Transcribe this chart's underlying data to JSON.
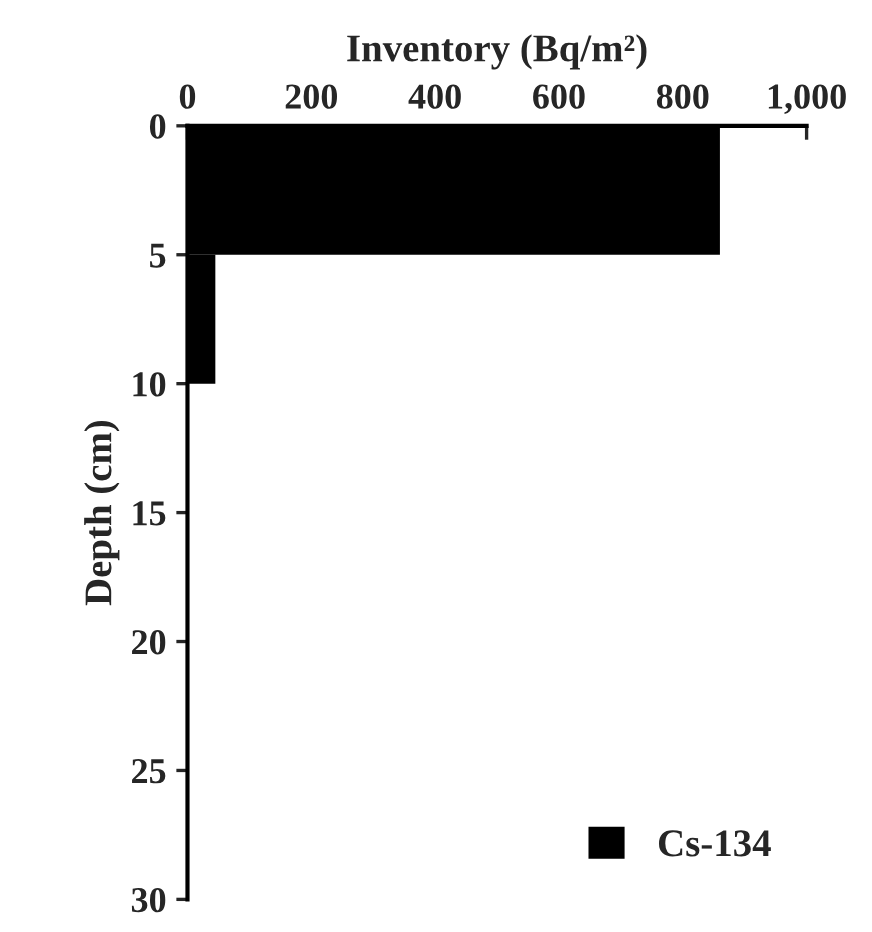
{
  "chart_data": {
    "type": "bar",
    "orientation": "horizontal",
    "xlabel": "Inventory (Bq/m²)",
    "ylabel": "Depth (cm)",
    "x": [
      2.5,
      7.5
    ],
    "series": [
      {
        "name": "Cs-134",
        "color": "#000000",
        "values": [
          860,
          45
        ]
      }
    ],
    "xlim": [
      0,
      1000
    ],
    "xticks": [
      0,
      200,
      400,
      600,
      800,
      {
        "value": 1000,
        "label": "1,000"
      }
    ],
    "ylim": [
      30,
      0
    ],
    "yticks": [
      0,
      5,
      10,
      15,
      20,
      25,
      30
    ],
    "grid": false,
    "legend": "bottom right"
  }
}
